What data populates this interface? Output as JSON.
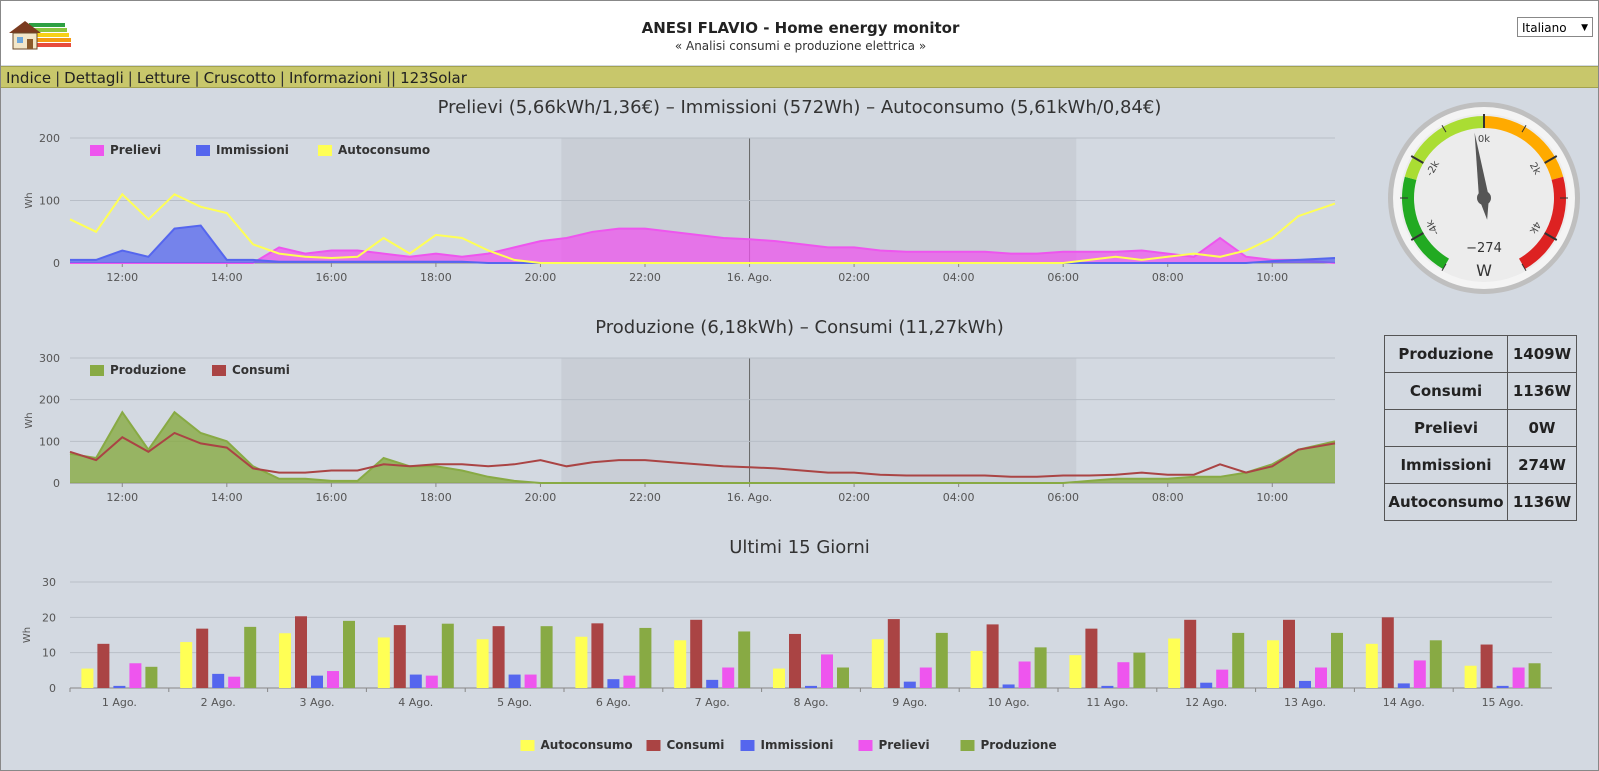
{
  "header": {
    "title": "ANESI FLAVIO - Home energy monitor",
    "subtitle": "« Analisi consumi e produzione elettrica »",
    "language": "Italiano"
  },
  "menu": {
    "items": [
      "Indice",
      "Dettagli",
      "Letture",
      "Cruscotto",
      "Informazioni"
    ],
    "extra": "123Solar"
  },
  "chart1": {
    "title": "Prelievi (5,66kWh/1,36€) – Immissioni (572Wh) – Autoconsumo (5,61kWh/0,84€)"
  },
  "chart2": {
    "title": "Produzione (6,18kWh) – Consumi (11,27kWh)"
  },
  "chart3": {
    "title": "Ultimi 15 Giorni"
  },
  "gauge": {
    "labels": [
      "-4k",
      "-2k",
      "0k",
      "2k",
      "4k"
    ],
    "value": -274,
    "value_label": "−274",
    "unit": "W"
  },
  "stats": [
    {
      "label": "Produzione",
      "value": "1409W"
    },
    {
      "label": "Consumi",
      "value": "1136W"
    },
    {
      "label": "Prelievi",
      "value": "0W"
    },
    {
      "label": "Immissioni",
      "value": "274W"
    },
    {
      "label": "Autoconsumo",
      "value": "1136W"
    }
  ],
  "colors": {
    "prelievi": "#ee55ee",
    "immissioni": "#5566ee",
    "autoconsumo": "#ffff55",
    "produzione": "#88aa44",
    "consumi": "#aa4444",
    "menubar": "#c8c76b"
  },
  "chart_data": [
    {
      "type": "area",
      "ylabel": "Wh",
      "ylim": [
        0,
        200
      ],
      "yticks": [
        0,
        100,
        200
      ],
      "xticks": [
        "12:00",
        "14:00",
        "16:00",
        "18:00",
        "20:00",
        "22:00",
        "16. Ago.",
        "02:00",
        "04:00",
        "06:00",
        "08:00",
        "10:00"
      ],
      "x_hours": [
        11,
        11.5,
        12,
        12.5,
        13,
        13.5,
        14,
        14.5,
        15,
        15.5,
        16,
        16.5,
        17,
        17.5,
        18,
        18.5,
        19,
        19.5,
        20,
        20.5,
        21,
        21.5,
        22,
        22.5,
        23,
        23.5,
        24,
        24.5,
        25,
        25.5,
        26,
        26.5,
        27,
        27.5,
        28,
        28.5,
        29,
        29.5,
        30,
        30.5,
        31,
        31.5,
        32,
        32.5,
        33,
        33.5,
        34,
        34.5,
        35.2
      ],
      "legend_position": "top-left",
      "series": [
        {
          "name": "Prelievi",
          "values": [
            0,
            0,
            0,
            0,
            0,
            0,
            0,
            0,
            25,
            15,
            20,
            20,
            15,
            10,
            15,
            10,
            15,
            25,
            35,
            40,
            50,
            55,
            55,
            50,
            45,
            40,
            38,
            35,
            30,
            25,
            25,
            20,
            18,
            18,
            18,
            18,
            15,
            15,
            18,
            18,
            18,
            20,
            15,
            10,
            40,
            10,
            5,
            5,
            0
          ]
        },
        {
          "name": "Immissioni",
          "values": [
            5,
            5,
            20,
            10,
            55,
            60,
            5,
            5,
            2,
            2,
            2,
            2,
            2,
            2,
            2,
            2,
            0,
            0,
            0,
            0,
            0,
            0,
            0,
            0,
            0,
            0,
            0,
            0,
            0,
            0,
            0,
            0,
            0,
            0,
            0,
            0,
            0,
            0,
            0,
            0,
            0,
            0,
            0,
            0,
            0,
            0,
            3,
            5,
            8
          ]
        },
        {
          "name": "Autoconsumo",
          "values": [
            70,
            50,
            110,
            70,
            110,
            90,
            80,
            30,
            15,
            10,
            8,
            10,
            40,
            15,
            45,
            40,
            20,
            5,
            0,
            0,
            0,
            0,
            0,
            0,
            0,
            0,
            0,
            0,
            0,
            0,
            0,
            0,
            0,
            0,
            0,
            0,
            0,
            0,
            0,
            5,
            10,
            5,
            10,
            15,
            10,
            20,
            40,
            75,
            95
          ]
        }
      ]
    },
    {
      "type": "area",
      "ylabel": "Wh",
      "ylim": [
        0,
        300
      ],
      "yticks": [
        0,
        100,
        200,
        300
      ],
      "xticks": [
        "12:00",
        "14:00",
        "16:00",
        "18:00",
        "20:00",
        "22:00",
        "16. Ago.",
        "02:00",
        "04:00",
        "06:00",
        "08:00",
        "10:00"
      ],
      "x_hours": [
        11,
        11.5,
        12,
        12.5,
        13,
        13.5,
        14,
        14.5,
        15,
        15.5,
        16,
        16.5,
        17,
        17.5,
        18,
        18.5,
        19,
        19.5,
        20,
        20.5,
        21,
        21.5,
        22,
        22.5,
        23,
        23.5,
        24,
        24.5,
        25,
        25.5,
        26,
        26.5,
        27,
        27.5,
        28,
        28.5,
        29,
        29.5,
        30,
        30.5,
        31,
        31.5,
        32,
        32.5,
        33,
        33.5,
        34,
        34.5,
        35.2
      ],
      "legend_position": "top-left",
      "series": [
        {
          "name": "Produzione",
          "values": [
            70,
            60,
            170,
            80,
            170,
            120,
            100,
            40,
            10,
            10,
            5,
            5,
            60,
            40,
            40,
            30,
            15,
            5,
            0,
            0,
            0,
            0,
            0,
            0,
            0,
            0,
            0,
            0,
            0,
            0,
            0,
            0,
            0,
            0,
            0,
            0,
            0,
            0,
            0,
            5,
            10,
            10,
            10,
            15,
            15,
            25,
            45,
            80,
            100
          ]
        },
        {
          "name": "Consumi",
          "values": [
            75,
            55,
            110,
            75,
            120,
            95,
            85,
            35,
            25,
            25,
            30,
            30,
            45,
            40,
            45,
            45,
            40,
            45,
            55,
            40,
            50,
            55,
            55,
            50,
            45,
            40,
            38,
            35,
            30,
            25,
            25,
            20,
            18,
            18,
            18,
            18,
            15,
            15,
            18,
            18,
            20,
            25,
            20,
            20,
            45,
            25,
            40,
            80,
            95
          ]
        }
      ]
    },
    {
      "type": "bar",
      "ylabel": "Wh",
      "ylim": [
        0,
        30
      ],
      "yticks": [
        0,
        10,
        20,
        30
      ],
      "categories": [
        "1 Ago.",
        "2 Ago.",
        "3 Ago.",
        "4 Ago.",
        "5 Ago.",
        "6 Ago.",
        "7 Ago.",
        "8 Ago.",
        "9 Ago.",
        "10 Ago.",
        "11 Ago.",
        "12 Ago.",
        "13 Ago.",
        "14 Ago.",
        "15 Ago."
      ],
      "legend_position": "bottom-center",
      "series": [
        {
          "name": "Autoconsumo",
          "values": [
            5.5,
            13,
            15.5,
            14.3,
            13.8,
            14.5,
            13.5,
            5.5,
            13.8,
            10.5,
            9.3,
            14,
            13.5,
            12.5,
            6.3
          ]
        },
        {
          "name": "Consumi",
          "values": [
            12.5,
            16.8,
            20.3,
            17.8,
            17.5,
            18.3,
            19.3,
            15.3,
            19.5,
            18,
            16.8,
            19.3,
            19.3,
            20,
            12.3
          ]
        },
        {
          "name": "Immissioni",
          "values": [
            0.6,
            4,
            3.5,
            3.8,
            3.8,
            2.5,
            2.3,
            0.6,
            1.8,
            1,
            0.6,
            1.5,
            2,
            1.3,
            0.6
          ]
        },
        {
          "name": "Prelievi",
          "values": [
            7,
            3.2,
            4.8,
            3.5,
            3.8,
            3.5,
            5.8,
            9.5,
            5.8,
            7.5,
            7.3,
            5.2,
            5.8,
            7.8,
            5.8
          ]
        },
        {
          "name": "Produzione",
          "values": [
            6,
            17.3,
            19,
            18.2,
            17.5,
            17,
            16,
            5.8,
            15.6,
            11.5,
            10,
            15.6,
            15.6,
            13.5,
            7
          ]
        }
      ]
    }
  ]
}
